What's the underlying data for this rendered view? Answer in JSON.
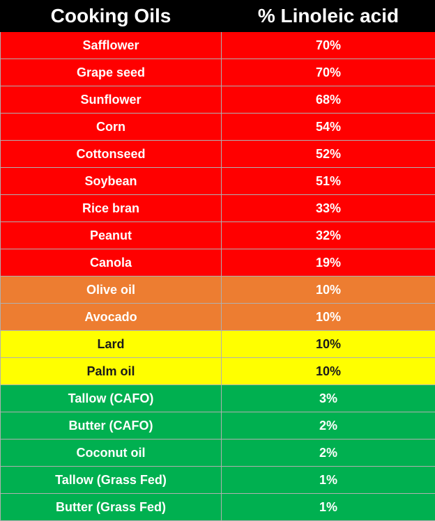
{
  "chart_data": {
    "type": "table",
    "columns": [
      "Cooking Oils",
      "% Linoleic acid"
    ],
    "rows": [
      {
        "oil": "Safflower",
        "pct": "70%",
        "value": 70,
        "color": "#ff0000",
        "tier": "red"
      },
      {
        "oil": "Grape seed",
        "pct": "70%",
        "value": 70,
        "color": "#ff0000",
        "tier": "red"
      },
      {
        "oil": "Sunflower",
        "pct": "68%",
        "value": 68,
        "color": "#ff0000",
        "tier": "red"
      },
      {
        "oil": "Corn",
        "pct": "54%",
        "value": 54,
        "color": "#ff0000",
        "tier": "red"
      },
      {
        "oil": "Cottonseed",
        "pct": "52%",
        "value": 52,
        "color": "#ff0000",
        "tier": "red"
      },
      {
        "oil": "Soybean",
        "pct": "51%",
        "value": 51,
        "color": "#ff0000",
        "tier": "red"
      },
      {
        "oil": "Rice bran",
        "pct": "33%",
        "value": 33,
        "color": "#ff0000",
        "tier": "red"
      },
      {
        "oil": "Peanut",
        "pct": "32%",
        "value": 32,
        "color": "#ff0000",
        "tier": "red"
      },
      {
        "oil": "Canola",
        "pct": "19%",
        "value": 19,
        "color": "#ff0000",
        "tier": "red"
      },
      {
        "oil": "Olive oil",
        "pct": "10%",
        "value": 10,
        "color": "#ed7d31",
        "tier": "orange"
      },
      {
        "oil": "Avocado",
        "pct": "10%",
        "value": 10,
        "color": "#ed7d31",
        "tier": "orange"
      },
      {
        "oil": "Lard",
        "pct": "10%",
        "value": 10,
        "color": "#ffff00",
        "tier": "yellow"
      },
      {
        "oil": "Palm oil",
        "pct": "10%",
        "value": 10,
        "color": "#ffff00",
        "tier": "yellow"
      },
      {
        "oil": "Tallow (CAFO)",
        "pct": "3%",
        "value": 3,
        "color": "#00b050",
        "tier": "green"
      },
      {
        "oil": "Butter (CAFO)",
        "pct": "2%",
        "value": 2,
        "color": "#00b050",
        "tier": "green"
      },
      {
        "oil": "Coconut oil",
        "pct": "2%",
        "value": 2,
        "color": "#00b050",
        "tier": "green"
      },
      {
        "oil": "Tallow (Grass Fed)",
        "pct": "1%",
        "value": 1,
        "color": "#00b050",
        "tier": "green"
      },
      {
        "oil": "Butter (Grass Fed)",
        "pct": "1%",
        "value": 1,
        "color": "#00b050",
        "tier": "green"
      }
    ]
  }
}
